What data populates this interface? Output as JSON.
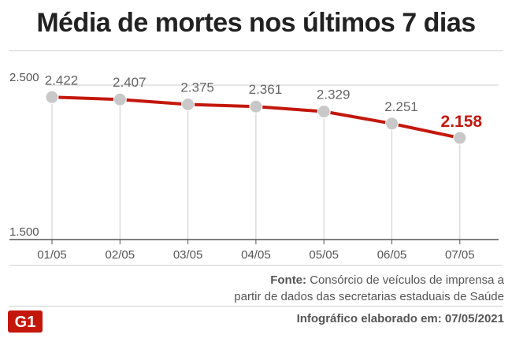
{
  "title": "Média de mortes nos últimos 7 dias",
  "source": {
    "label": "Fonte:",
    "line1": "Consórcio de veículos de imprensa a",
    "line2": "partir de dados das secretarias estaduais de Saúde"
  },
  "credit": "Infográfico elaborado em: 07/05/2021",
  "logo": {
    "text": "G1",
    "color": "#c4170c"
  },
  "colors": {
    "line": "#c4170c",
    "point": "#c8c8c8",
    "highlight_label": "#c4170c",
    "label": "#666666",
    "axis": "#555555",
    "grid": "#cccccc"
  },
  "chart_data": {
    "type": "line",
    "categories": [
      "01/05",
      "02/05",
      "03/05",
      "04/05",
      "05/05",
      "06/05",
      "07/05"
    ],
    "values": [
      2422,
      2407,
      2375,
      2361,
      2329,
      2251,
      2158
    ],
    "value_labels": [
      "2.422",
      "2.407",
      "2.375",
      "2.361",
      "2.329",
      "2.251",
      "2.158"
    ],
    "highlight_last": true,
    "ylim": [
      1500,
      2500
    ],
    "y_ticks": [
      1500,
      2500
    ],
    "y_tick_labels": [
      "1.500",
      "2.500"
    ],
    "xlabel": "",
    "ylabel": "",
    "grid": "vertical drop lines and top reference line"
  }
}
